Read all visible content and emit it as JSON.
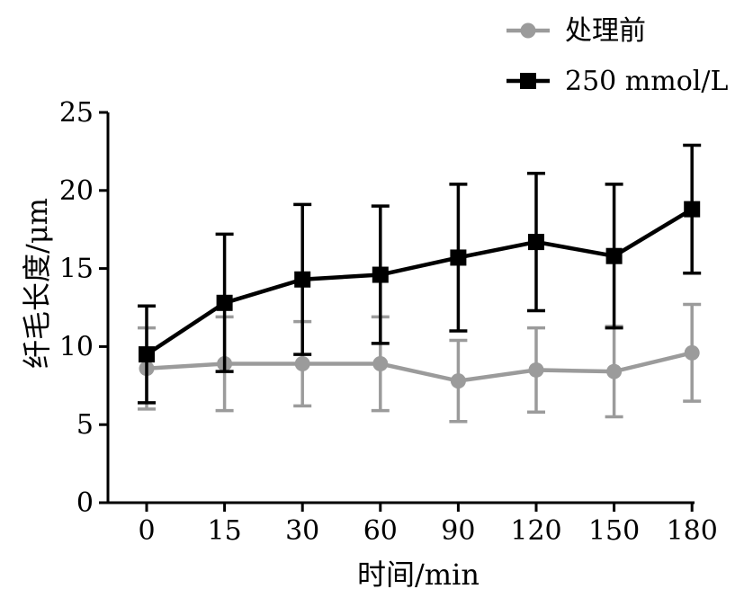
{
  "chart_data": {
    "type": "line",
    "categories": [
      "0",
      "15",
      "30",
      "60",
      "90",
      "120",
      "150",
      "180"
    ],
    "xlabel": "时间/min",
    "ylabel": "纤毛长度/μm",
    "ylim": [
      0,
      25
    ],
    "yticks": [
      "0",
      "5",
      "10",
      "15",
      "20",
      "25"
    ],
    "grid": false,
    "legend_position": "top-right",
    "series": [
      {
        "name": "处理前",
        "color": "#9b9b9b",
        "marker": "circle",
        "values": [
          8.6,
          8.9,
          8.9,
          8.9,
          7.8,
          8.5,
          8.4,
          9.6
        ],
        "error": [
          2.6,
          3.0,
          2.7,
          3.0,
          2.6,
          2.7,
          2.9,
          3.1
        ]
      },
      {
        "name": "250 mmol/L",
        "color": "#000000",
        "marker": "square",
        "values": [
          9.5,
          12.8,
          14.3,
          14.6,
          15.7,
          16.7,
          15.8,
          18.8
        ],
        "error": [
          3.1,
          4.4,
          4.8,
          4.4,
          4.7,
          4.4,
          4.6,
          4.1
        ]
      }
    ]
  }
}
